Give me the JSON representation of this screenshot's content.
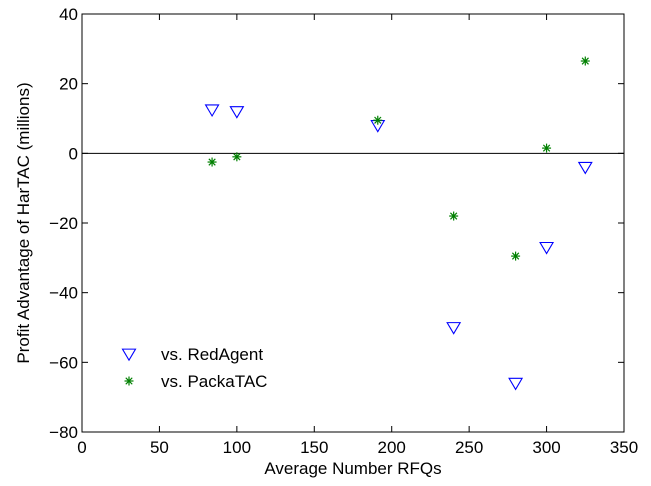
{
  "chart_data": {
    "type": "scatter",
    "xlabel": "Average Number RFQs",
    "ylabel": "Profit Advantage of HarTAC (millions)",
    "xlim": [
      0,
      350
    ],
    "ylim": [
      -80,
      40
    ],
    "x_ticks": [
      0,
      50,
      100,
      150,
      200,
      250,
      300,
      350
    ],
    "y_ticks": [
      -80,
      -60,
      -40,
      -20,
      0,
      20,
      40
    ],
    "grid": false,
    "zero_line": true,
    "legend_position": "bottom-left",
    "series": [
      {
        "name": "vs. RedAgent",
        "marker": "triangle-down",
        "color": "#0000ff",
        "points": [
          {
            "x": 84,
            "y": 12.5
          },
          {
            "x": 100,
            "y": 12
          },
          {
            "x": 191,
            "y": 8
          },
          {
            "x": 240,
            "y": -50
          },
          {
            "x": 280,
            "y": -66
          },
          {
            "x": 300,
            "y": -27
          },
          {
            "x": 325,
            "y": -4
          }
        ]
      },
      {
        "name": "vs. PackaTAC",
        "marker": "asterisk",
        "color": "#008000",
        "points": [
          {
            "x": 84,
            "y": -2.5
          },
          {
            "x": 100,
            "y": -1
          },
          {
            "x": 191,
            "y": 9.5
          },
          {
            "x": 240,
            "y": -18
          },
          {
            "x": 280,
            "y": -29.5
          },
          {
            "x": 300,
            "y": 1.5
          },
          {
            "x": 325,
            "y": 26.5
          }
        ]
      }
    ]
  }
}
